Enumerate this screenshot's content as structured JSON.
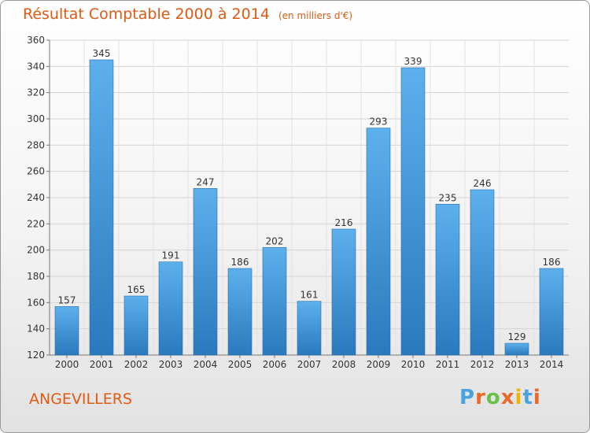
{
  "chart_data": {
    "type": "bar",
    "title": "Résultat Comptable 2000 à 2014",
    "subtitle": "(en milliers d'€)",
    "categories": [
      "2000",
      "2001",
      "2002",
      "2003",
      "2004",
      "2005",
      "2006",
      "2007",
      "2008",
      "2009",
      "2010",
      "2011",
      "2012",
      "2013",
      "2014"
    ],
    "values": [
      157,
      345,
      165,
      191,
      247,
      186,
      202,
      161,
      216,
      293,
      339,
      235,
      246,
      129,
      186
    ],
    "ylim": [
      120,
      360
    ],
    "yticks": [
      120,
      140,
      160,
      180,
      200,
      220,
      240,
      260,
      280,
      300,
      320,
      340,
      360
    ],
    "grid": true,
    "bar_color": "#3d8fd3",
    "title_color": "#e05a12"
  },
  "commune": "ANGEVILLERS",
  "logo": {
    "text": "Proxiti",
    "letter_colors": [
      "#4aa3df",
      "#e8692a",
      "#6cc04a",
      "#e8692a",
      "#f0b400",
      "#4aa3df",
      "#e8692a"
    ]
  }
}
